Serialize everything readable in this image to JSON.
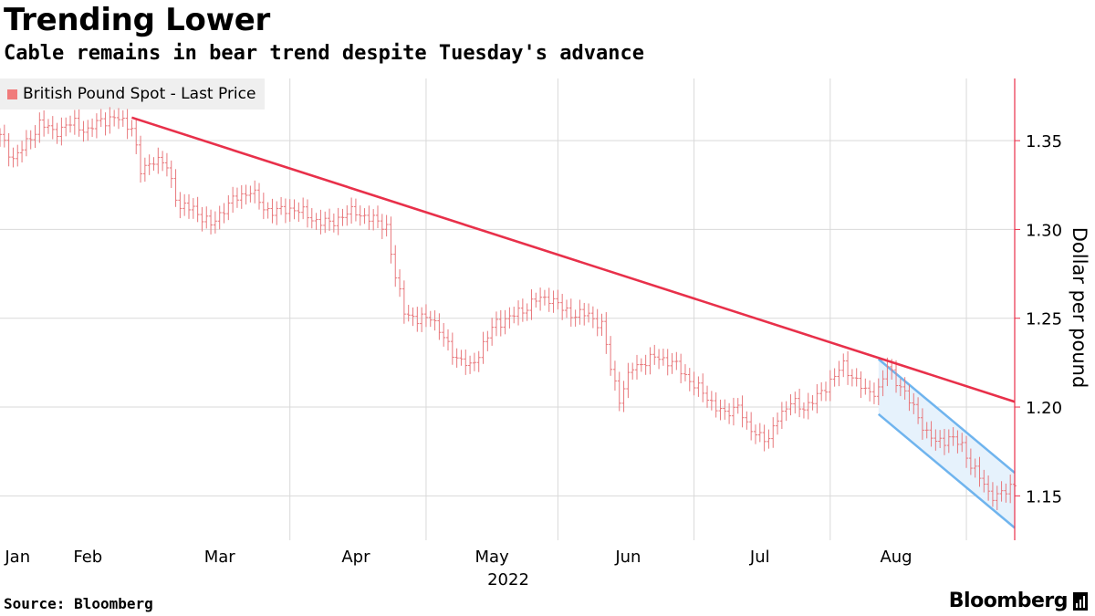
{
  "header": {
    "title": "Trending Lower",
    "subtitle": "Cable remains in bear trend despite Tuesday's advance"
  },
  "legend": {
    "label": "British Pound Spot - Last Price",
    "color": "#f07b7b"
  },
  "footer": {
    "source": "Source: Bloomberg",
    "brand": "Bloomberg"
  },
  "colors": {
    "price": "#e8787c",
    "trendline": "#e8304a",
    "channel": "#6fb4ee",
    "channel_fill": "#e6f2fc",
    "axis": "#e8304a",
    "grid": "#d9d9d9"
  },
  "chart_data": {
    "type": "line",
    "title": "Trending Lower",
    "subtitle": "Cable remains in bear trend despite Tuesday's advance",
    "ylabel": "Dollar per pound",
    "xlabel": "2022",
    "x_range": [
      0,
      231
    ],
    "ylim": [
      1.125,
      1.385
    ],
    "yticks": [
      1.15,
      1.2,
      1.25,
      1.3,
      1.35
    ],
    "ytick_labels": [
      "1.15",
      "1.20",
      "1.25",
      "1.30",
      "1.35"
    ],
    "months": [
      {
        "label": "Jan",
        "x": 4
      },
      {
        "label": "Feb",
        "x": 20
      },
      {
        "label": "Mar",
        "x": 50
      },
      {
        "label": "Apr",
        "x": 81
      },
      {
        "label": "May",
        "x": 112
      },
      {
        "label": "Jun",
        "x": 143
      },
      {
        "label": "Jul",
        "x": 173
      },
      {
        "label": "Aug",
        "x": 204
      }
    ],
    "gridlines_x": [
      66,
      97,
      127,
      158,
      189,
      220
    ],
    "year_label": "2022",
    "series": [
      {
        "name": "British Pound Spot - Last Price",
        "anchors": [
          [
            0,
            1.352
          ],
          [
            3,
            1.34
          ],
          [
            6,
            1.348
          ],
          [
            9,
            1.36
          ],
          [
            12,
            1.355
          ],
          [
            17,
            1.36
          ],
          [
            20,
            1.355
          ],
          [
            23,
            1.362
          ],
          [
            27,
            1.362
          ],
          [
            30,
            1.358
          ],
          [
            32,
            1.332
          ],
          [
            35,
            1.34
          ],
          [
            38,
            1.335
          ],
          [
            41,
            1.312
          ],
          [
            44,
            1.312
          ],
          [
            48,
            1.302
          ],
          [
            51,
            1.312
          ],
          [
            54,
            1.318
          ],
          [
            57,
            1.322
          ],
          [
            60,
            1.312
          ],
          [
            63,
            1.31
          ],
          [
            67,
            1.312
          ],
          [
            71,
            1.306
          ],
          [
            75,
            1.303
          ],
          [
            78,
            1.308
          ],
          [
            81,
            1.31
          ],
          [
            85,
            1.305
          ],
          [
            88,
            1.302
          ],
          [
            90,
            1.272
          ],
          [
            92,
            1.255
          ],
          [
            95,
            1.248
          ],
          [
            98,
            1.252
          ],
          [
            101,
            1.238
          ],
          [
            104,
            1.228
          ],
          [
            107,
            1.222
          ],
          [
            110,
            1.235
          ],
          [
            113,
            1.248
          ],
          [
            116,
            1.25
          ],
          [
            119,
            1.255
          ],
          [
            122,
            1.26
          ],
          [
            125,
            1.262
          ],
          [
            128,
            1.255
          ],
          [
            131,
            1.252
          ],
          [
            134,
            1.252
          ],
          [
            137,
            1.246
          ],
          [
            139,
            1.222
          ],
          [
            141,
            1.205
          ],
          [
            144,
            1.222
          ],
          [
            147,
            1.226
          ],
          [
            150,
            1.228
          ],
          [
            153,
            1.225
          ],
          [
            156,
            1.218
          ],
          [
            159,
            1.21
          ],
          [
            162,
            1.203
          ],
          [
            165,
            1.195
          ],
          [
            168,
            1.202
          ],
          [
            170,
            1.188
          ],
          [
            173,
            1.185
          ],
          [
            175,
            1.18
          ],
          [
            177,
            1.195
          ],
          [
            180,
            1.202
          ],
          [
            183,
            1.2
          ],
          [
            186,
            1.205
          ],
          [
            189,
            1.215
          ],
          [
            192,
            1.223
          ],
          [
            195,
            1.215
          ],
          [
            197,
            1.208
          ],
          [
            200,
            1.21
          ],
          [
            202,
            1.222
          ],
          [
            205,
            1.212
          ],
          [
            207,
            1.203
          ],
          [
            209,
            1.195
          ],
          [
            211,
            1.185
          ],
          [
            213,
            1.18
          ],
          [
            216,
            1.183
          ],
          [
            219,
            1.178
          ],
          [
            221,
            1.168
          ],
          [
            223,
            1.16
          ],
          [
            225,
            1.152
          ],
          [
            227,
            1.15
          ],
          [
            229,
            1.152
          ],
          [
            231,
            1.158
          ]
        ]
      }
    ],
    "trendline": {
      "from": [
        30,
        1.363
      ],
      "to": [
        231,
        1.203
      ]
    },
    "channel": {
      "upper": {
        "from": [
          200,
          1.227
        ],
        "to": [
          231,
          1.163
        ]
      },
      "lower": {
        "from": [
          200,
          1.196
        ],
        "to": [
          231,
          1.132
        ]
      }
    }
  }
}
